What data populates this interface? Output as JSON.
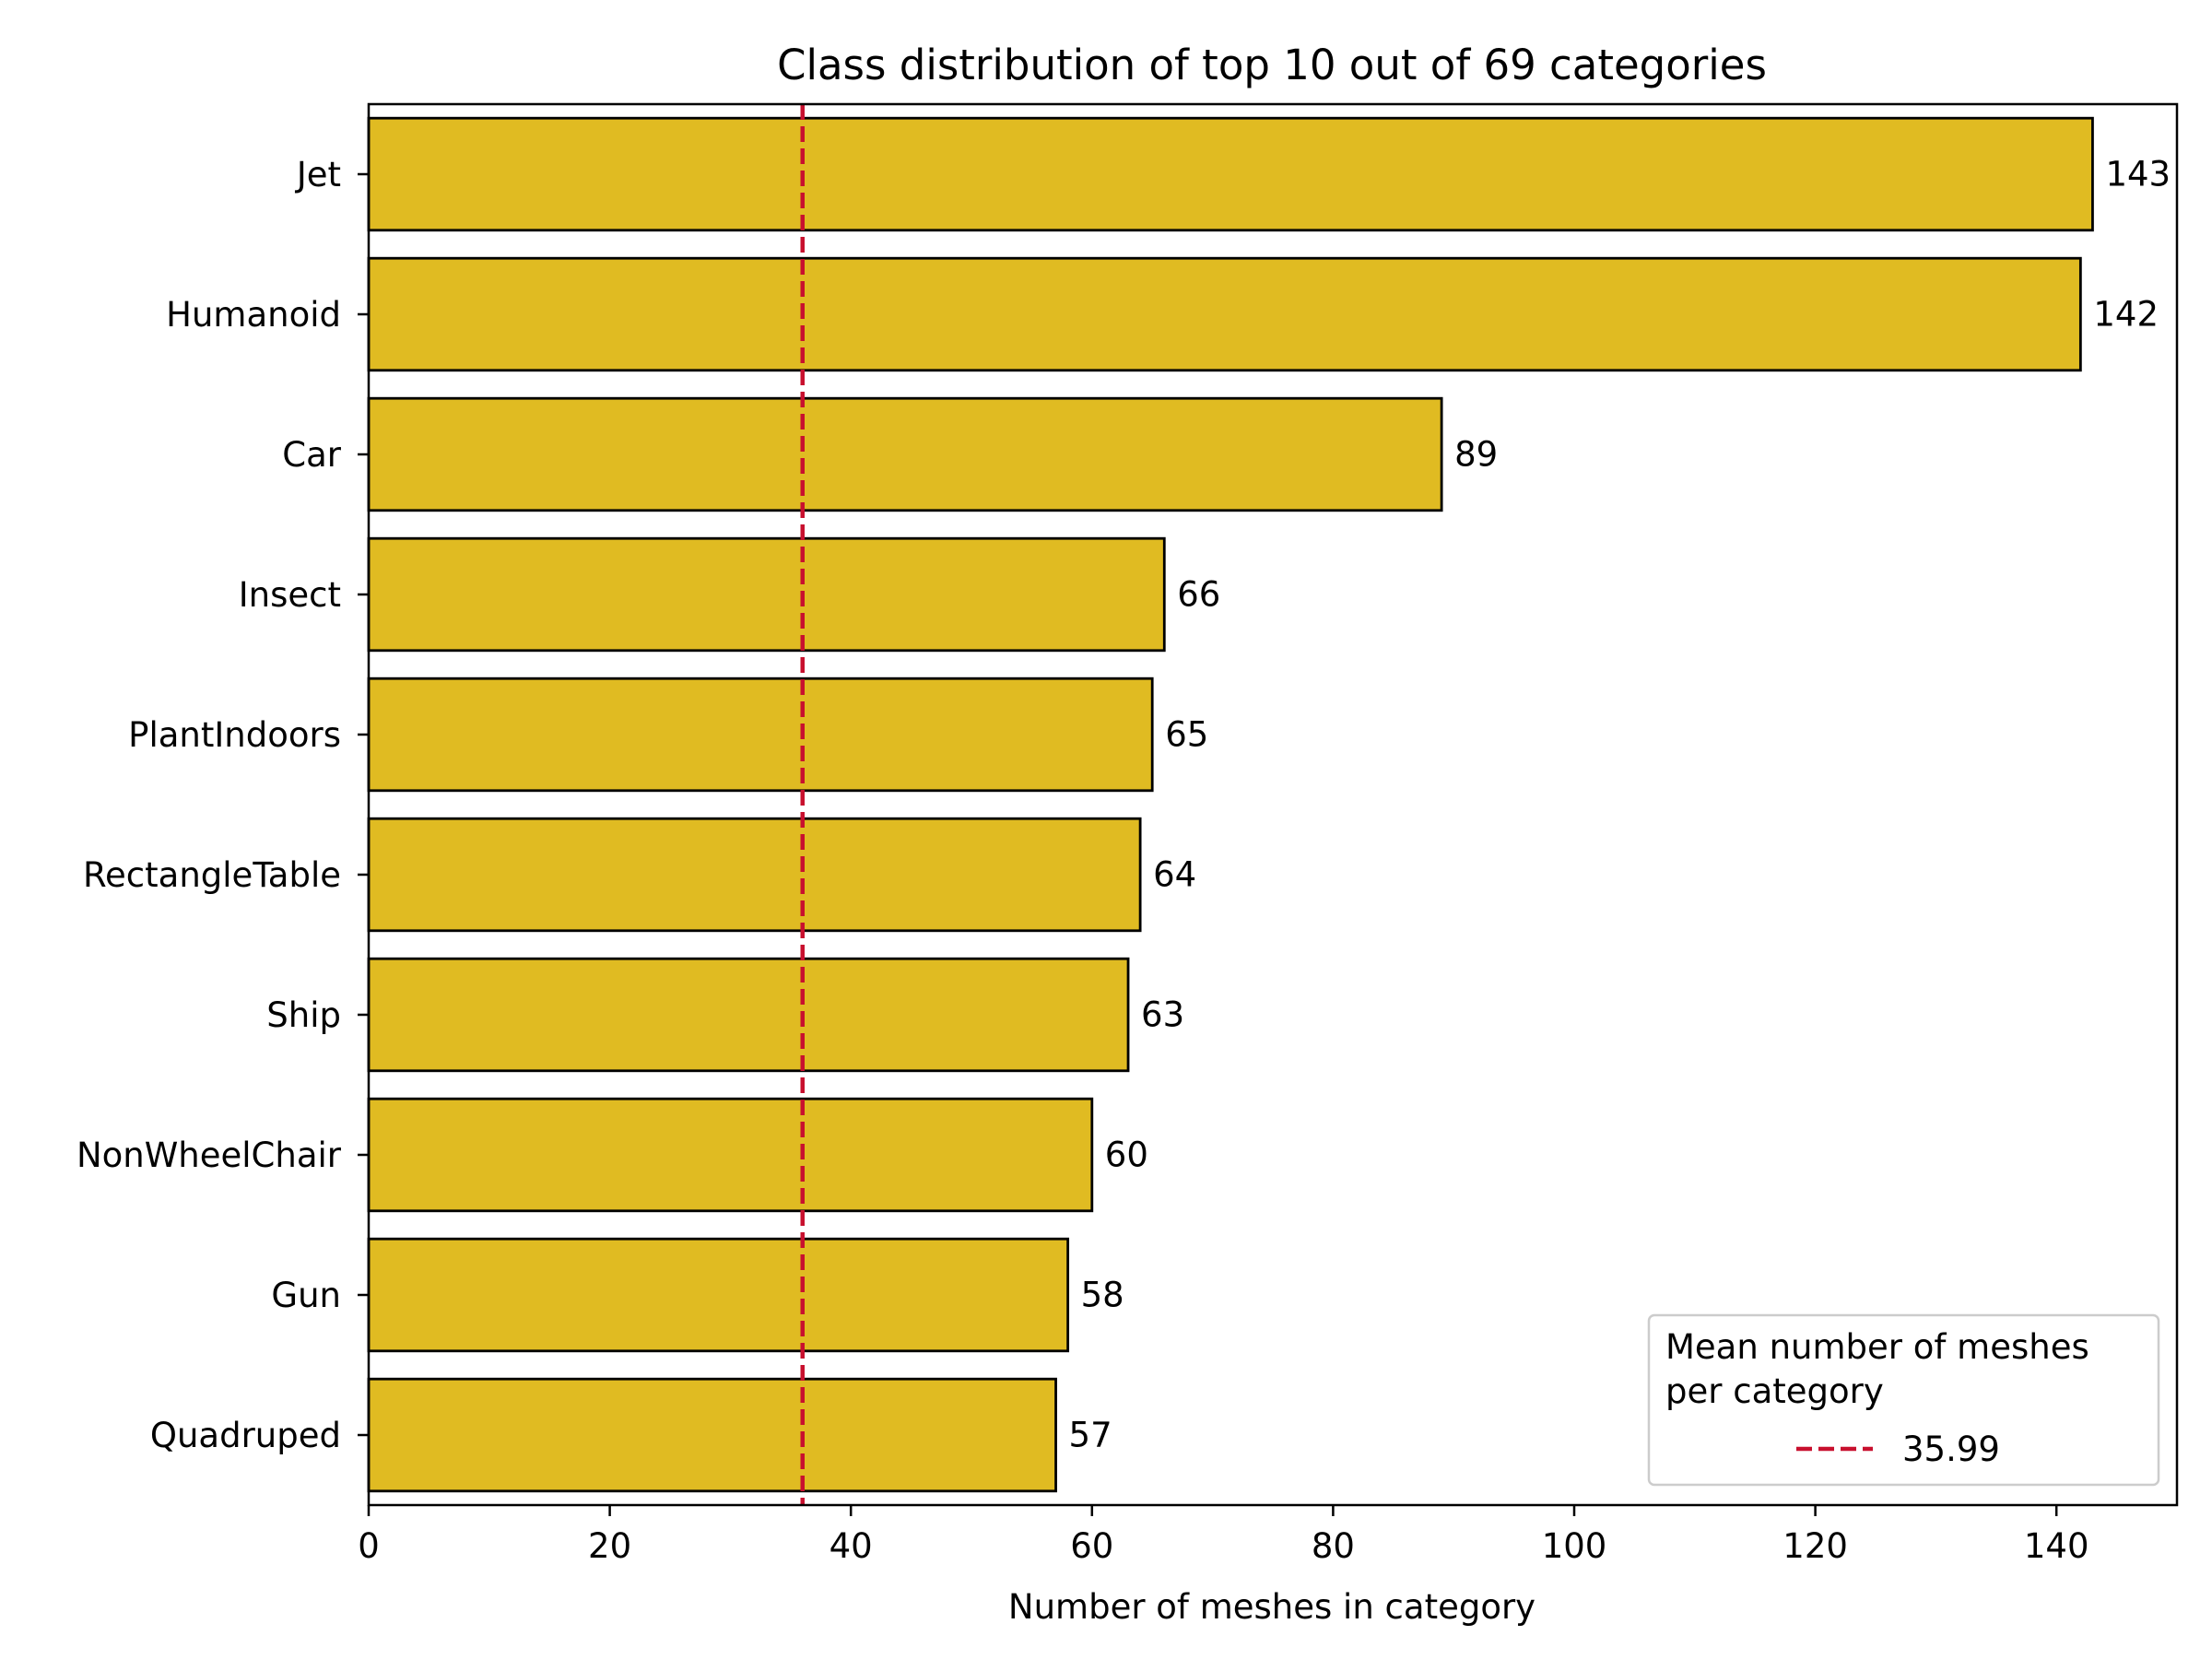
{
  "chart_data": {
    "type": "bar",
    "orientation": "horizontal",
    "title": "Class distribution of top 10 out of 69 categories",
    "xlabel": "Number of meshes in category",
    "ylabel": "",
    "categories": [
      "Jet",
      "Humanoid",
      "Car",
      "Insect",
      "PlantIndoors",
      "RectangleTable",
      "Ship",
      "NonWheelChair",
      "Gun",
      "Quadruped"
    ],
    "values": [
      143,
      142,
      89,
      66,
      65,
      64,
      63,
      60,
      58,
      57
    ],
    "data_labels": [
      "143",
      "142",
      "89",
      "66",
      "65",
      "64",
      "63",
      "60",
      "58",
      "57"
    ],
    "xlim": [
      0,
      150
    ],
    "xticks": [
      0,
      20,
      40,
      60,
      80,
      100,
      120,
      140
    ],
    "grid": false,
    "bar_color": "#e0bb22",
    "bar_edge_color": "#000000",
    "reference_line": {
      "value": 35.99,
      "label": "35.99",
      "style": "dashed",
      "color": "#c8102e"
    },
    "legend": {
      "title": "Mean number of meshes\nper category",
      "placement": "lower-right",
      "entries": [
        "35.99"
      ]
    }
  }
}
